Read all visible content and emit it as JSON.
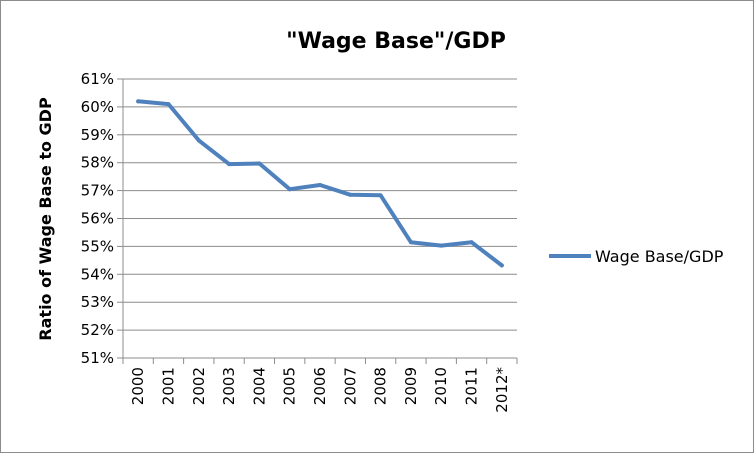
{
  "chart_data": {
    "type": "line",
    "title": "\"Wage Base\"/GDP",
    "xlabel": "",
    "ylabel": "Ratio of Wage Base to GDP",
    "categories": [
      "2000",
      "2001",
      "2002",
      "2003",
      "2004",
      "2005",
      "2006",
      "2007",
      "2008",
      "2009",
      "2010",
      "2011",
      "2012*"
    ],
    "series": [
      {
        "name": "Wage Base/GDP",
        "color": "#4f81bd",
        "values": [
          60.2,
          60.1,
          58.8,
          57.95,
          57.97,
          57.05,
          57.2,
          56.85,
          56.83,
          55.15,
          55.03,
          55.15,
          54.32
        ]
      }
    ],
    "ylim": [
      51,
      61
    ],
    "yticks": [
      "51%",
      "52%",
      "53%",
      "54%",
      "55%",
      "56%",
      "57%",
      "58%",
      "59%",
      "60%",
      "61%"
    ],
    "grid": true,
    "legend_position": "right"
  }
}
